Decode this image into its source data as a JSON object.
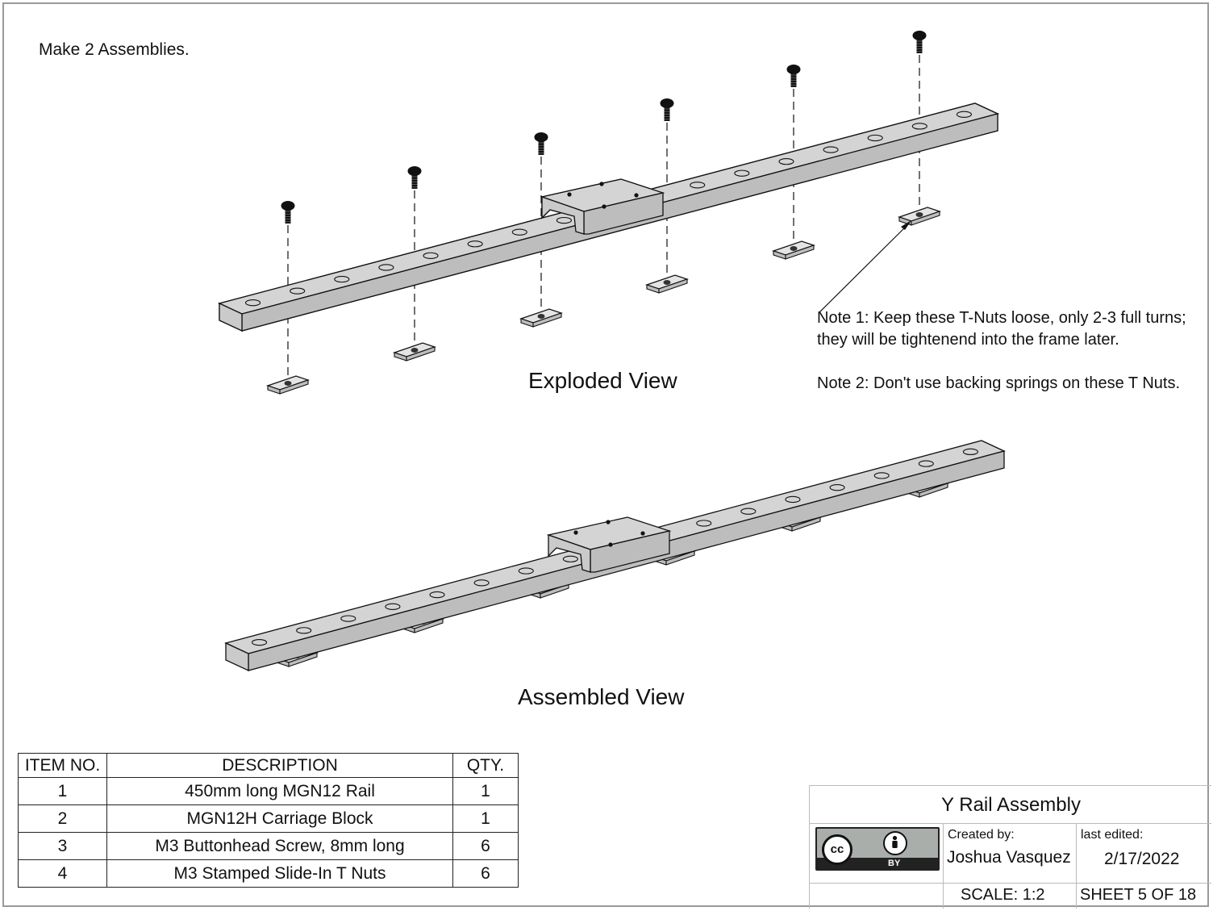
{
  "sheet": {
    "instruction": "Make 2 Assemblies.",
    "views": {
      "exploded_title": "Exploded View",
      "assembled_title": "Assembled View"
    },
    "notes": {
      "note1_line1": "Note 1: Keep these T-Nuts loose, only 2-3 full turns;",
      "note1_line2": "they will be tightenend into the frame later.",
      "note2": "Note 2: Don't use backing springs on these T Nuts."
    }
  },
  "bom": {
    "headers": [
      "ITEM NO.",
      "DESCRIPTION",
      "QTY."
    ],
    "rows": [
      {
        "item": "1",
        "description": "450mm long MGN12 Rail",
        "qty": "1"
      },
      {
        "item": "2",
        "description": "MGN12H Carriage Block",
        "qty": "1"
      },
      {
        "item": "3",
        "description": "M3 Buttonhead Screw, 8mm long",
        "qty": "6"
      },
      {
        "item": "4",
        "description": "M3 Stamped Slide-In T Nuts",
        "qty": "6"
      }
    ]
  },
  "title_block": {
    "title": "Y Rail Assembly",
    "license_logo": {
      "cc": "cc",
      "by": "BY",
      "icon": "creative-commons-by-icon"
    },
    "created_by_label": "Created by:",
    "created_by": "Joshua Vasquez",
    "last_edited_label": "last edited:",
    "last_edited": "2/17/2022",
    "scale": "SCALE: 1:2",
    "sheet": "SHEET 5 OF 18"
  },
  "colors": {
    "part_fill": "#d4d4d4",
    "part_side": "#bdbdbd",
    "line": "#111111",
    "border": "#9a9a9a"
  }
}
